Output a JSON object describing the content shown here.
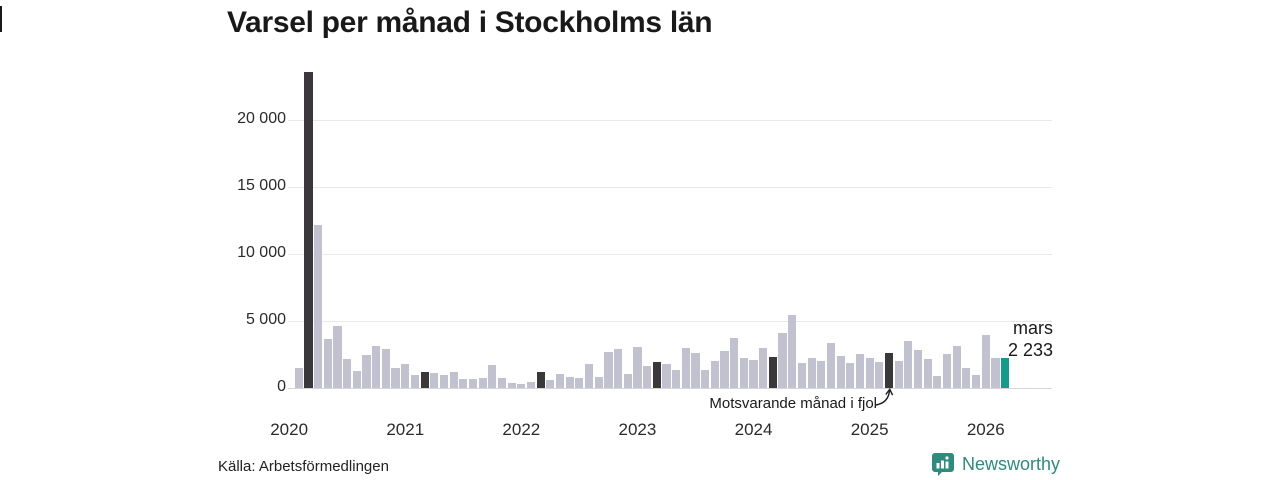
{
  "title": "Varsel per månad i Stockholms län",
  "source": "Källa: Arbetsförmedlingen",
  "brand": {
    "name": "Newsworthy",
    "color": "#2e8b7e"
  },
  "annotation": {
    "text": "Motsvarande månad i fjol"
  },
  "colors": {
    "bar_default": "#c2c1cf",
    "bar_dark": "#3a383b",
    "bar_teal": "#129b8d",
    "gridline": "#e9e9e9",
    "zero_line": "#d6d6d6"
  },
  "chart_data": {
    "type": "bar",
    "title": "Varsel per månad i Stockholms län",
    "xlabel": "",
    "ylabel": "",
    "grid": "horizontal",
    "start": {
      "year": 2020,
      "month": 2
    },
    "end": {
      "year": 2026,
      "month": 3
    },
    "values": [
      1500,
      23600,
      12200,
      3700,
      4650,
      2150,
      1300,
      2500,
      3150,
      2900,
      1500,
      1800,
      1000,
      1250,
      1150,
      1000,
      1200,
      670,
      700,
      800,
      1760,
      750,
      370,
      300,
      450,
      1240,
      650,
      1050,
      870,
      745,
      1800,
      870,
      2730,
      2930,
      1040,
      3100,
      1690,
      1980,
      1790,
      1400,
      3000,
      2650,
      1350,
      2000,
      2800,
      3750,
      2250,
      2100,
      3000,
      2350,
      4100,
      5450,
      1850,
      2230,
      2050,
      3350,
      2400,
      1900,
      2580,
      2230,
      1930,
      2600,
      2000,
      3550,
      2850,
      2150,
      900,
      2530,
      3170,
      1540,
      990,
      3970,
      2230,
      2233
    ],
    "dark_indices": [
      1,
      13,
      25,
      37,
      49,
      61
    ],
    "dark_meaning": "Motsvarande månad i fjol (mars varje år)",
    "teal_index": 73,
    "year_ticks": [
      "2020",
      "2021",
      "2022",
      "2023",
      "2024",
      "2025",
      "2026"
    ],
    "ytick_values": [
      0,
      5000,
      10000,
      15000,
      20000
    ],
    "ytick_labels": [
      "0",
      "5 000",
      "10 000",
      "15 000",
      "20 000"
    ],
    "ylim": [
      0,
      24200
    ],
    "latest": {
      "month_label": "mars",
      "value_label": "2 233",
      "value": 2233
    },
    "legend": "none"
  }
}
